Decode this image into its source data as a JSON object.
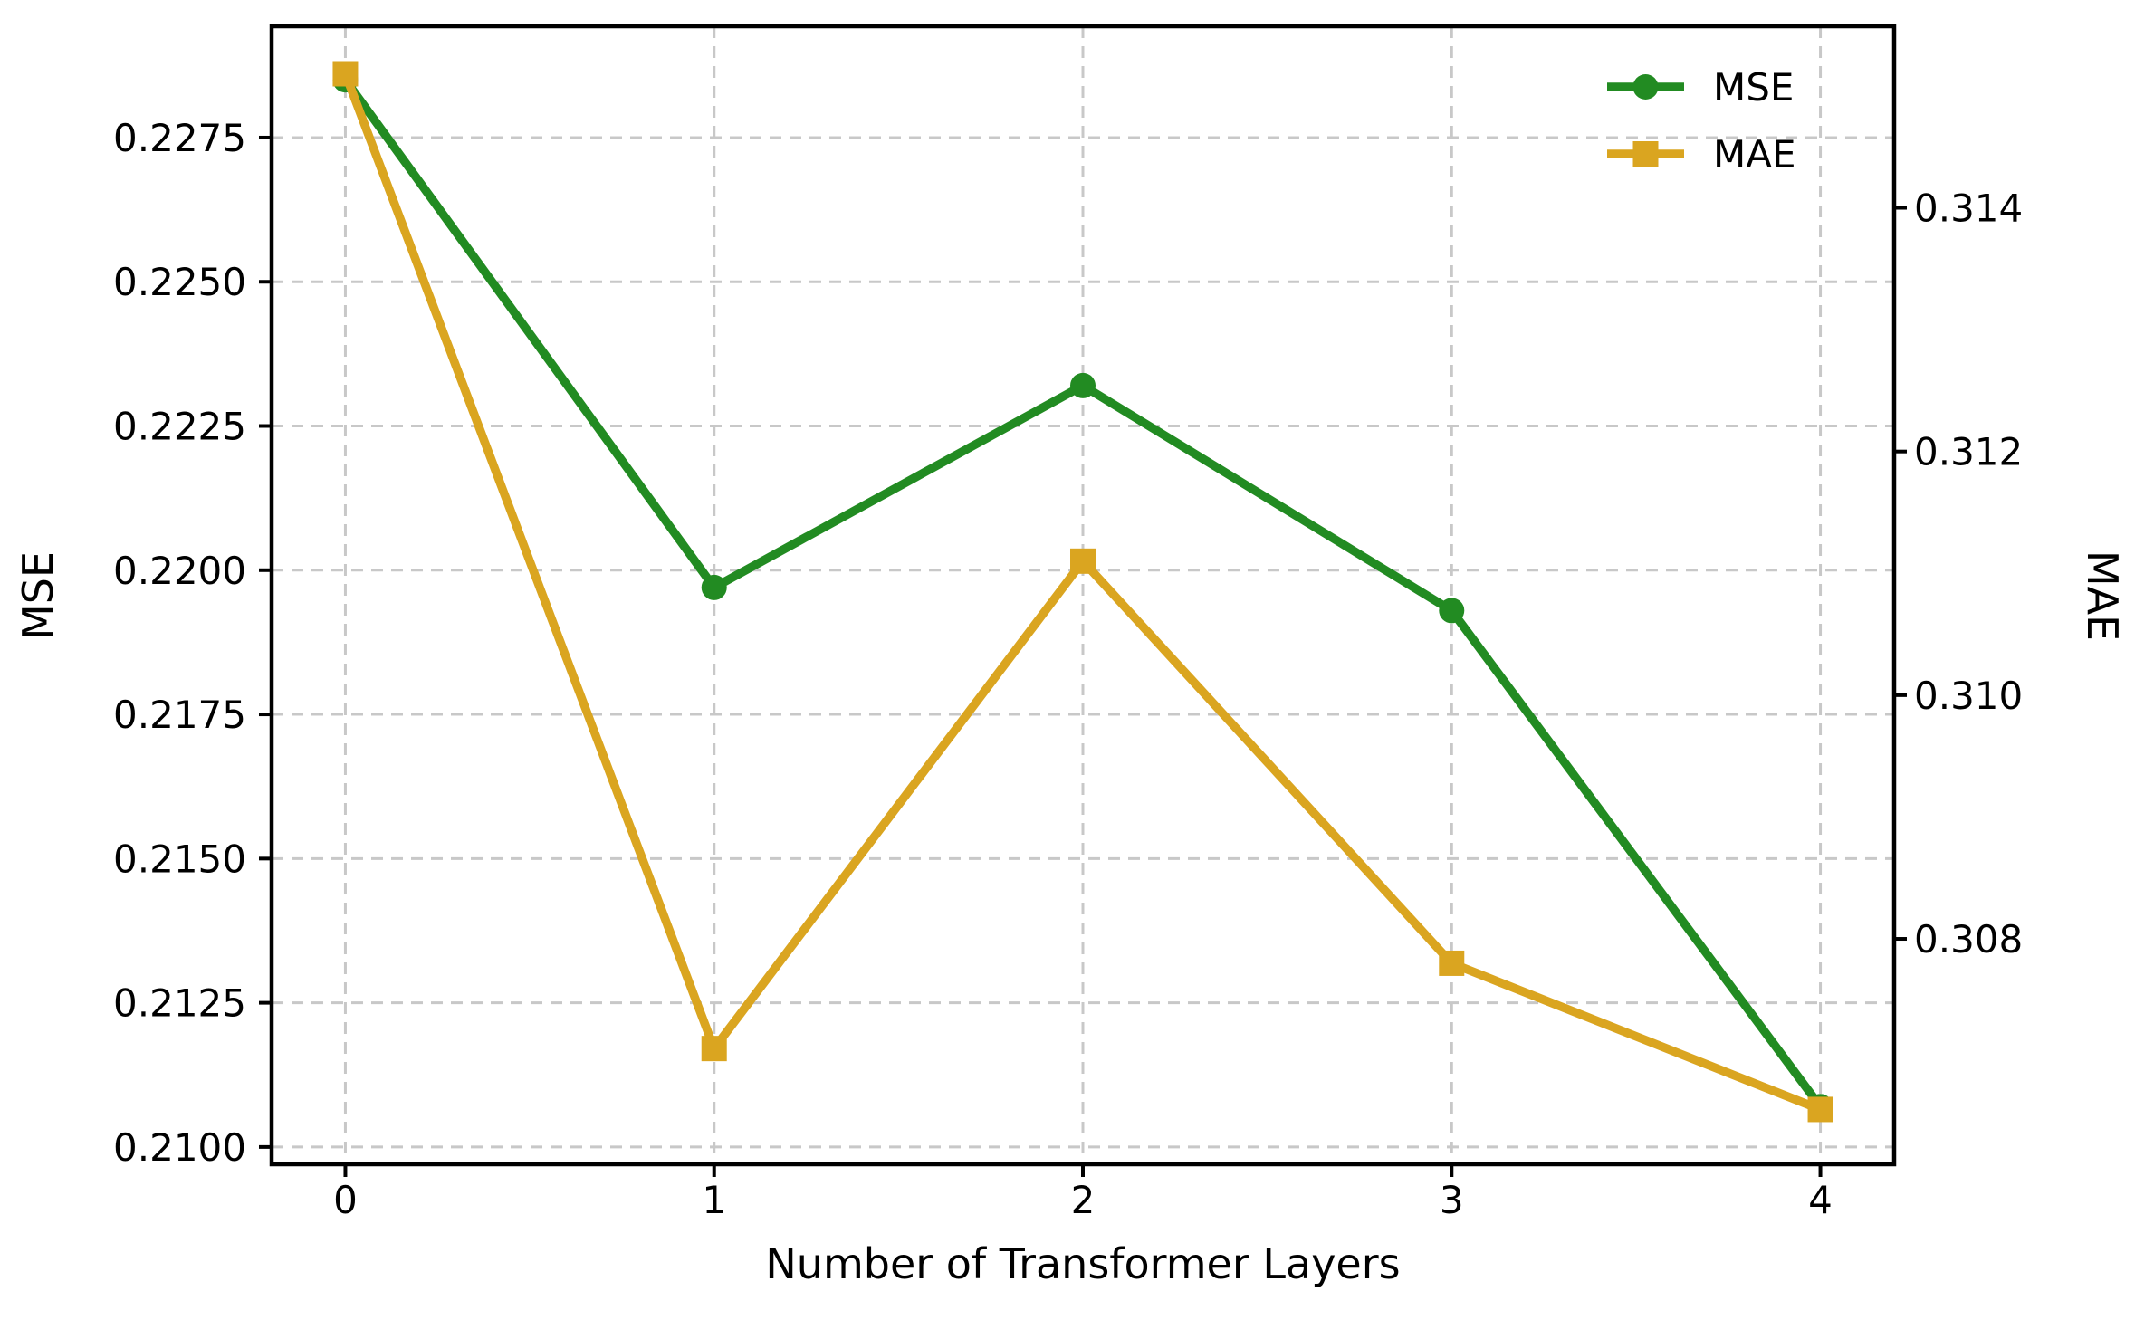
{
  "chart_data": {
    "type": "line",
    "title": "",
    "x": [
      0,
      1,
      2,
      3,
      4
    ],
    "x_axis": {
      "label": "Number of Transformer Layers",
      "tick_labels": [
        "0",
        "1",
        "2",
        "3",
        "4"
      ],
      "tick_values": [
        0,
        1,
        2,
        3,
        4
      ],
      "range": [
        -0.2,
        4.2
      ]
    },
    "left_axis": {
      "label": "MSE",
      "tick_labels": [
        "0.2100",
        "0.2125",
        "0.2150",
        "0.2175",
        "0.2200",
        "0.2225",
        "0.2250",
        "0.2275"
      ],
      "tick_values": [
        0.21,
        0.2125,
        0.215,
        0.2175,
        0.22,
        0.2225,
        0.225,
        0.2275
      ],
      "range": [
        0.2097,
        0.22943
      ]
    },
    "right_axis": {
      "label": "MAE",
      "tick_labels": [
        "0.308",
        "0.310",
        "0.312",
        "0.314"
      ],
      "tick_values": [
        0.308,
        0.31,
        0.312,
        0.314
      ],
      "range": [
        0.30615,
        0.31549
      ]
    },
    "series": [
      {
        "name": "MSE",
        "axis": "left",
        "color": "#228B22",
        "marker": "circle",
        "values": [
          0.2285,
          0.2197,
          0.2232,
          0.2193,
          0.2107
        ]
      },
      {
        "name": "MAE",
        "axis": "right",
        "color": "#DAA520",
        "marker": "square",
        "values": [
          0.3151,
          0.3071,
          0.3111,
          0.3078,
          0.3066
        ]
      }
    ],
    "legend": {
      "position": "upper right",
      "entries": [
        "MSE",
        "MAE"
      ]
    },
    "grid": {
      "show": true,
      "color": "#c8c8c8",
      "style": "dashed"
    },
    "colors": {
      "spine": "#000000",
      "background": "#ffffff"
    }
  }
}
